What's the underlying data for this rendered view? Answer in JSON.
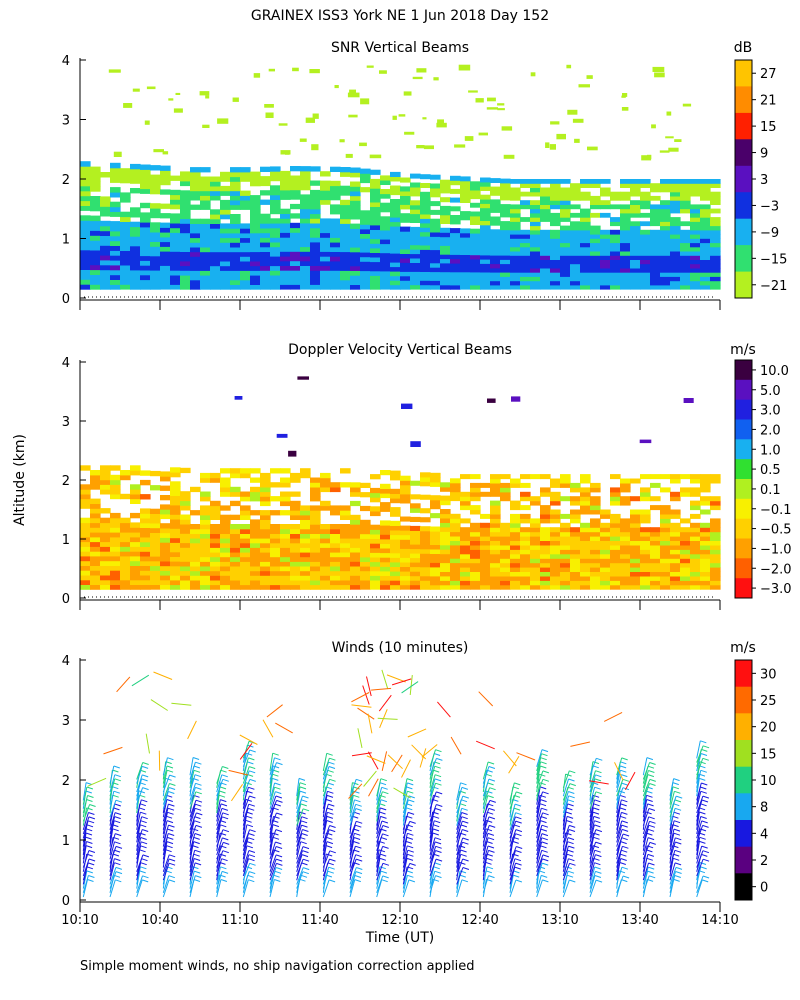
{
  "header": {
    "title": "GRAINEX ISS3 York NE   1 Jun 2018 Day 152"
  },
  "y_axis_label": "Altitude (km)",
  "x_axis_label": "Time (UT)",
  "footer_note": "Simple moment winds, no ship navigation correction applied",
  "x_ticks": [
    "10:10",
    "10:40",
    "11:10",
    "11:40",
    "12:10",
    "12:40",
    "13:10",
    "13:40",
    "14:10"
  ],
  "y_ticks": [
    "0",
    "1",
    "2",
    "3",
    "4"
  ],
  "chart_data": [
    {
      "type": "heatmap",
      "title": "SNR Vertical Beams",
      "unit": "dB",
      "x_range": [
        "10:10",
        "14:10"
      ],
      "y_range_km": [
        0,
        4
      ],
      "colorbar": {
        "labels": [
          "27",
          "21",
          "15",
          "9",
          "3",
          "−3",
          "−9",
          "−15",
          "−21"
        ],
        "colors": [
          "#ffc400",
          "#ff8c00",
          "#ff2000",
          "#4a006a",
          "#5a10c0",
          "#1030e0",
          "#18b0f0",
          "#30e070",
          "#b4f020"
        ]
      },
      "features": {
        "boundary_layer_top_km": [
          2.3,
          2.25,
          2.2,
          2.2,
          2.22,
          2.2,
          2.1,
          2.05,
          2.0,
          2.0,
          2.0,
          2.0,
          2.0
        ],
        "sparse_echo_above_km": [
          2.3,
          4.0
        ]
      }
    },
    {
      "type": "heatmap",
      "title": "Doppler Velocity Vertical Beams",
      "unit": "m/s",
      "x_range": [
        "10:10",
        "14:10"
      ],
      "y_range_km": [
        0,
        4
      ],
      "colorbar": {
        "labels": [
          "10.0",
          "5.0",
          "3.0",
          "2.0",
          "1.0",
          "0.5",
          "0.1",
          "−0.1",
          "−0.5",
          "−1.0",
          "−2.0",
          "−3.0"
        ],
        "colors": [
          "#3a0040",
          "#5a10c0",
          "#2020e0",
          "#1060f0",
          "#18b0f0",
          "#30e030",
          "#b0f020",
          "#f8f000",
          "#ffd000",
          "#ffa000",
          "#ff6000",
          "#ff1010"
        ]
      },
      "features": {
        "echo_top_km": [
          2.25,
          2.25,
          2.2,
          2.2,
          2.2,
          2.2,
          2.15,
          2.1,
          2.1,
          2.1,
          2.1,
          2.1,
          2.1
        ]
      }
    },
    {
      "type": "scatter",
      "title": "Winds (10 minutes)",
      "unit": "m/s",
      "x_range": [
        "10:10",
        "14:10"
      ],
      "y_range_km": [
        0,
        4
      ],
      "colorbar": {
        "labels": [
          "30",
          "25",
          "20",
          "15",
          "10",
          "8",
          "4",
          "2",
          "0"
        ],
        "colors": [
          "#ff1010",
          "#ff6a00",
          "#ffb000",
          "#a0e020",
          "#20d080",
          "#18a8f0",
          "#1818e0",
          "#5a0080",
          "#000000"
        ]
      },
      "profiles_time": [
        "10:10",
        "10:20",
        "10:30",
        "10:40",
        "10:50",
        "11:00",
        "11:10",
        "11:20",
        "11:30",
        "11:40",
        "11:50",
        "12:00",
        "12:10",
        "12:20",
        "12:30",
        "12:40",
        "12:50",
        "13:00",
        "13:10",
        "13:20",
        "13:30",
        "13:40",
        "13:50",
        "14:00",
        "14:10"
      ]
    }
  ]
}
